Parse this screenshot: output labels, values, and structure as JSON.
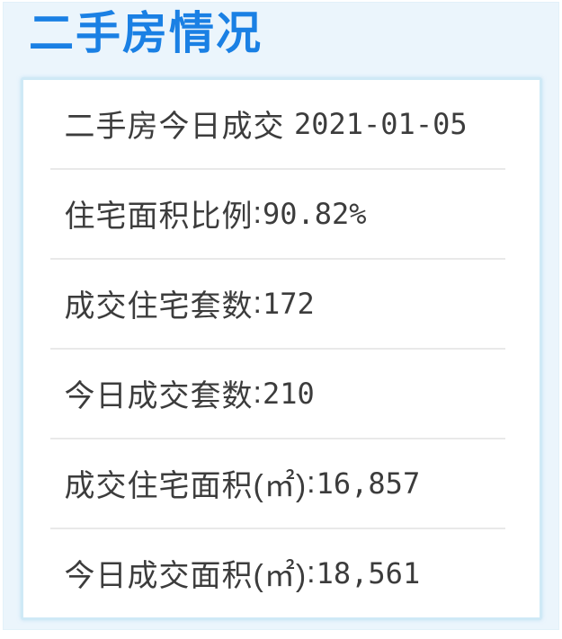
{
  "panel": {
    "title": "二手房情况"
  },
  "card": {
    "rows": [
      {
        "label": "二手房今日成交",
        "separator": " ",
        "value": "2021-01-05"
      },
      {
        "label": "住宅面积比例",
        "separator": ":",
        "value": "90.82%"
      },
      {
        "label": "成交住宅套数",
        "separator": ":",
        "value": "172"
      },
      {
        "label": "今日成交套数",
        "separator": ":",
        "value": "210"
      },
      {
        "label": "成交住宅面积(㎡)",
        "separator": ":",
        "value": "16,857"
      },
      {
        "label": "今日成交面积(㎡)",
        "separator": ":",
        "value": "18,561"
      }
    ]
  },
  "colors": {
    "title_blue": "#1a80e4",
    "panel_background": "#ebf5fc",
    "card_border": "#cfe9f6",
    "divider": "#e9e9e9",
    "body_text": "#3c3c3c"
  }
}
